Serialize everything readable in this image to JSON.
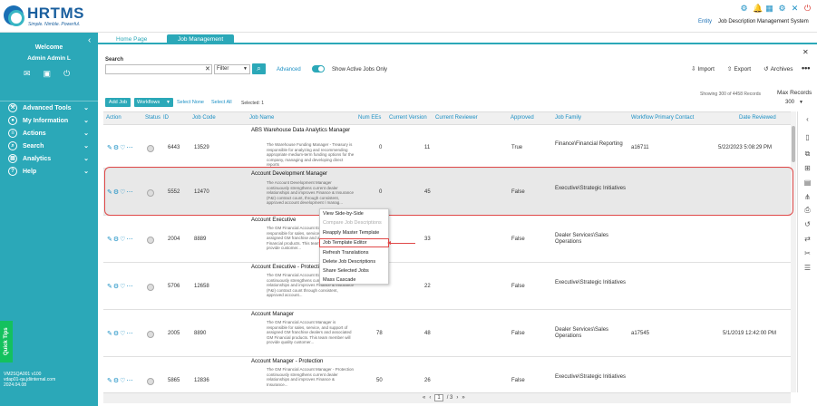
{
  "brand": {
    "name": "HRTMS",
    "tagline": "Simple. Nimble. Powerful."
  },
  "header": {
    "entity_link": "Entity",
    "system_name": "Job Description Management System"
  },
  "sidebar": {
    "welcome": "Welcome",
    "user": "Admin Admin L",
    "items": [
      {
        "label": "Advanced Tools",
        "icon": "tools-icon"
      },
      {
        "label": "My Information",
        "icon": "user-icon"
      },
      {
        "label": "Actions",
        "icon": "actions-icon"
      },
      {
        "label": "Search",
        "icon": "search-icon"
      },
      {
        "label": "Analytics",
        "icon": "analytics-icon"
      },
      {
        "label": "Help",
        "icon": "help-icon"
      }
    ],
    "quick_tips": "Quick Tips",
    "version_lines": [
      "VM2SQA001 v100",
      "vdap01-qa.jdiinternal.com",
      "2024.04.08"
    ]
  },
  "tabs": {
    "home": "Home Page",
    "job_management": "Job Management"
  },
  "search": {
    "label": "Search",
    "placeholder": "",
    "filter": "Filter",
    "advanced": "Advanced",
    "toggle_label": "Show Active Jobs Only"
  },
  "toolbar": {
    "import": "Import",
    "export": "Export",
    "archives": "Archives"
  },
  "list_controls": {
    "add_job": "Add Job",
    "workflows": "Workflows",
    "select_none": "Select None",
    "select_all": "Select All",
    "selected": "Selected: 1",
    "showing": "Showing 300 of 4458 Records",
    "max_records_label": "Max Records",
    "max_records_value": "300"
  },
  "columns": [
    "Action",
    "Status",
    "ID",
    "Job Code",
    "Job Name",
    "Num EEs",
    "Current Version",
    "Current Reviewer",
    "Approved",
    "Job Family",
    "Workflow Primary Contact",
    "Date Reviewed"
  ],
  "rows": [
    {
      "id": "6443",
      "code": "13529",
      "name": "ABS Warehouse Data Analytics Manager",
      "desc": "The Warehouse Funding Manager - Treasury is responsible for analyzing and recommending appropriate medium-term funding options for the company, managing and developing direct reports",
      "ees": "0",
      "version": "11",
      "reviewer": "",
      "approved": "True",
      "family": "Finance\\Financial Reporting",
      "contact": "a16711",
      "date": "5/22/2023 5:08:29 PM"
    },
    {
      "id": "5552",
      "code": "12470",
      "name": "Account Development Manager",
      "desc": "The Account Development Manager continuously strengthens current dealer relationships and improves Finance & Insurance (F&I) contract count, through consistent, approved account development / manag...",
      "ees": "0",
      "version": "45",
      "reviewer": "",
      "approved": "False",
      "family": "Executive\\Strategic Initiatives",
      "contact": "",
      "date": ""
    },
    {
      "id": "2004",
      "code": "8889",
      "name": "Account Executive",
      "desc": "The GM Financial Account Executive is responsible for sales, service, and support of assigned GM franchise and associated GM Financial products. This team member will provide customer...",
      "ees": "",
      "version": "33",
      "reviewer": "",
      "approved": "False",
      "family": "Dealer Services\\Sales Operations",
      "contact": "",
      "date": ""
    },
    {
      "id": "5706",
      "code": "12658",
      "name": "Account Executive - Protection",
      "desc": "The GM Financial Account Executive - Protection continuously strengthens current dealer relationships and improves Finance & Insurance (F&I) contract count through consistent, approved account...",
      "ees": "",
      "version": "22",
      "reviewer": "",
      "approved": "False",
      "family": "Executive\\Strategic Initiatives",
      "contact": "",
      "date": ""
    },
    {
      "id": "2005",
      "code": "8890",
      "name": "Account Manager",
      "desc": "The GM Financial Account Manager is responsible for sales, service, and support of assigned GM franchise dealers and associated GM Financial products. This team member will provide quality customer...",
      "ees": "78",
      "version": "48",
      "reviewer": "",
      "approved": "False",
      "family": "Dealer Services\\Sales Operations",
      "contact": "a17545",
      "date": "5/1/2019 12:42:00 PM"
    },
    {
      "id": "5865",
      "code": "12836",
      "name": "Account Manager - Protection",
      "desc": "The GM Financial Account Manager - Protection continuously strengthens current dealer relationships and improves Finance & Insurance...",
      "ees": "50",
      "version": "26",
      "reviewer": "",
      "approved": "False",
      "family": "Executive\\Strategic Initiatives",
      "contact": "",
      "date": ""
    }
  ],
  "context_menu": {
    "items": [
      {
        "label": "View Side-by-Side",
        "disabled": false
      },
      {
        "label": "Compare Job Descriptions",
        "disabled": true
      },
      {
        "label": "Reapply Master Template",
        "disabled": false
      },
      {
        "label": "Job Template Editor",
        "disabled": false
      },
      {
        "label": "Refresh Translations",
        "disabled": false
      },
      {
        "label": "Delete Job Descriptions",
        "disabled": false
      },
      {
        "label": "Share Selected Jobs",
        "disabled": false
      },
      {
        "label": "Mass Cascade",
        "disabled": false
      }
    ]
  },
  "pager": {
    "current": "1",
    "total": "/ 3"
  }
}
